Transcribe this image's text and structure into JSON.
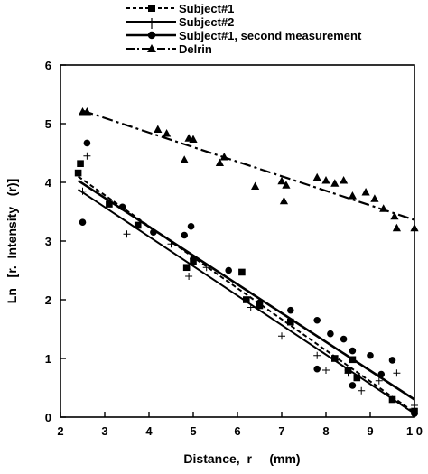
{
  "chart_data": {
    "type": "scatter",
    "xlabel": "Distance,  r     (mm)",
    "ylabel": "Ln   [r.  Intensity   (r)]",
    "xlim": [
      2,
      10
    ],
    "ylim": [
      0,
      6
    ],
    "x_ticks": [
      2,
      3,
      4,
      5,
      6,
      7,
      8,
      9,
      10
    ],
    "x_tick_labels": [
      "2",
      "3",
      "4",
      "5",
      "6",
      "7",
      "8",
      "9",
      "1 0"
    ],
    "y_ticks": [
      0,
      1,
      2,
      3,
      4,
      5,
      6
    ],
    "y_tick_labels": [
      "0",
      "1",
      "2",
      "3",
      "4",
      "5",
      "6"
    ],
    "grid": false,
    "legend_position": "top-center",
    "series": [
      {
        "name": "Subject#1",
        "marker": "square",
        "line_style": "dashed",
        "fit": {
          "x": [
            2.4,
            10.0
          ],
          "y": [
            4.1,
            0.08
          ]
        },
        "points": [
          [
            2.4,
            4.16
          ],
          [
            2.45,
            4.32
          ],
          [
            3.1,
            3.63
          ],
          [
            3.75,
            3.27
          ],
          [
            4.85,
            2.55
          ],
          [
            5.0,
            2.65
          ],
          [
            6.1,
            2.47
          ],
          [
            6.2,
            2.0
          ],
          [
            6.5,
            1.9
          ],
          [
            7.2,
            1.62
          ],
          [
            8.2,
            1.0
          ],
          [
            8.5,
            0.8
          ],
          [
            8.6,
            0.98
          ],
          [
            8.7,
            0.67
          ],
          [
            9.5,
            0.3
          ],
          [
            10.0,
            0.1
          ]
        ]
      },
      {
        "name": "Subject#2",
        "marker": "plus",
        "line_style": "solid",
        "fit": {
          "x": [
            2.4,
            10.0
          ],
          "y": [
            3.88,
            0.06
          ]
        },
        "points": [
          [
            2.5,
            3.85
          ],
          [
            2.6,
            4.45
          ],
          [
            3.5,
            3.12
          ],
          [
            4.5,
            2.95
          ],
          [
            4.9,
            2.4
          ],
          [
            5.3,
            2.55
          ],
          [
            6.3,
            1.87
          ],
          [
            7.0,
            1.38
          ],
          [
            7.8,
            1.05
          ],
          [
            8.0,
            0.8
          ],
          [
            8.5,
            0.75
          ],
          [
            8.8,
            0.45
          ],
          [
            9.2,
            0.62
          ],
          [
            9.6,
            0.75
          ],
          [
            10.0,
            0.2
          ]
        ]
      },
      {
        "name": "Subject#1,  second measurement",
        "marker": "circle",
        "line_style": "solid",
        "fit": {
          "x": [
            2.4,
            10.0
          ],
          "y": [
            4.03,
            0.3
          ]
        },
        "points": [
          [
            2.5,
            3.32
          ],
          [
            2.6,
            4.67
          ],
          [
            3.4,
            3.58
          ],
          [
            4.1,
            3.15
          ],
          [
            4.8,
            3.1
          ],
          [
            4.95,
            3.25
          ],
          [
            5.0,
            2.7
          ],
          [
            5.8,
            2.5
          ],
          [
            6.5,
            1.95
          ],
          [
            7.2,
            1.82
          ],
          [
            7.8,
            0.82
          ],
          [
            7.8,
            1.65
          ],
          [
            8.1,
            1.42
          ],
          [
            8.4,
            1.33
          ],
          [
            8.5,
            0.8
          ],
          [
            8.6,
            1.13
          ],
          [
            8.6,
            0.54
          ],
          [
            9.0,
            1.05
          ],
          [
            9.25,
            0.73
          ],
          [
            9.5,
            0.97
          ],
          [
            10.0,
            0.06
          ]
        ]
      },
      {
        "name": "Delrin",
        "marker": "triangle",
        "line_style": "dash-dot",
        "fit": {
          "x": [
            2.5,
            10.0
          ],
          "y": [
            5.22,
            3.36
          ]
        },
        "points": [
          [
            2.5,
            5.2
          ],
          [
            2.6,
            5.2
          ],
          [
            4.2,
            4.9
          ],
          [
            4.4,
            4.83
          ],
          [
            4.8,
            4.38
          ],
          [
            4.9,
            4.75
          ],
          [
            5.0,
            4.73
          ],
          [
            5.6,
            4.33
          ],
          [
            5.7,
            4.43
          ],
          [
            6.4,
            3.93
          ],
          [
            7.0,
            4.02
          ],
          [
            7.05,
            3.68
          ],
          [
            7.1,
            3.95
          ],
          [
            7.8,
            4.08
          ],
          [
            8.0,
            4.03
          ],
          [
            8.2,
            3.98
          ],
          [
            8.4,
            4.03
          ],
          [
            8.6,
            3.77
          ],
          [
            8.9,
            3.83
          ],
          [
            9.1,
            3.72
          ],
          [
            9.3,
            3.55
          ],
          [
            9.55,
            3.42
          ],
          [
            9.6,
            3.22
          ],
          [
            10.0,
            3.22
          ]
        ]
      }
    ]
  }
}
